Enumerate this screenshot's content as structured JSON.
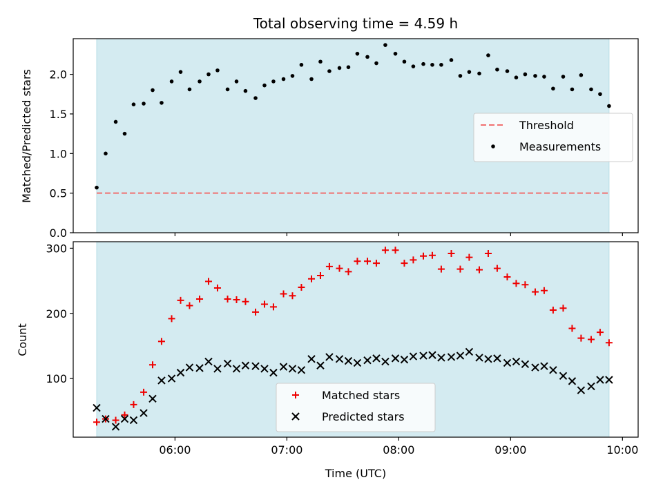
{
  "chart_data": {
    "title": "Total observing time = 4.59 h",
    "xlabel": "Time (UTC)",
    "x_ticks": [
      "06:00",
      "07:00",
      "08:00",
      "09:00",
      "10:00"
    ],
    "x_tick_values": [
      6.0,
      7.0,
      8.0,
      9.0,
      10.0
    ],
    "xlim": [
      5.09,
      10.14
    ],
    "x": [
      5.3,
      5.38,
      5.47,
      5.55,
      5.63,
      5.72,
      5.8,
      5.88,
      5.97,
      6.05,
      6.13,
      6.22,
      6.3,
      6.38,
      6.47,
      6.55,
      6.63,
      6.72,
      6.8,
      6.88,
      6.97,
      7.05,
      7.13,
      7.22,
      7.3,
      7.38,
      7.47,
      7.55,
      7.63,
      7.72,
      7.8,
      7.88,
      7.97,
      8.05,
      8.13,
      8.22,
      8.3,
      8.38,
      8.47,
      8.55,
      8.63,
      8.72,
      8.8,
      8.88,
      8.97,
      9.05,
      9.13,
      9.22,
      9.3,
      9.38,
      9.47,
      9.55,
      9.63,
      9.72,
      9.8,
      9.88
    ],
    "observing_window": [
      5.3,
      9.88
    ],
    "window_color": "#d4ebf1",
    "panels": [
      {
        "type": "scatter",
        "ylabel": "Matched/Predicted stars",
        "ylim": [
          0,
          2.45
        ],
        "y_ticks": [
          "0.0",
          "0.5",
          "1.0",
          "1.5",
          "2.0"
        ],
        "y_tick_values": [
          0.0,
          0.5,
          1.0,
          1.5,
          2.0
        ],
        "threshold": {
          "name": "Threshold",
          "value": 0.5,
          "color": "#f07070"
        },
        "series": [
          {
            "name": "Measurements",
            "marker": "dot",
            "color": "#000000",
            "values": [
              0.57,
              1.0,
              1.4,
              1.25,
              1.62,
              1.63,
              1.8,
              1.64,
              1.91,
              2.03,
              1.81,
              1.91,
              2.0,
              2.05,
              1.81,
              1.91,
              1.79,
              1.7,
              1.86,
              1.91,
              1.94,
              1.98,
              2.12,
              1.94,
              2.16,
              2.04,
              2.08,
              2.09,
              2.26,
              2.22,
              2.14,
              2.37,
              2.26,
              2.16,
              2.1,
              2.13,
              2.12,
              2.12,
              2.18,
              1.98,
              2.03,
              2.01,
              2.24,
              2.06,
              2.04,
              1.96,
              2.0,
              1.98,
              1.97,
              1.82,
              1.97,
              1.81,
              1.99,
              1.81,
              1.75,
              1.6
            ]
          }
        ],
        "legend": "center-right"
      },
      {
        "type": "scatter",
        "ylabel": "Count",
        "ylim": [
          10,
          310
        ],
        "y_ticks": [
          "100",
          "200",
          "300"
        ],
        "y_tick_values": [
          100,
          200,
          300
        ],
        "series": [
          {
            "name": "Matched stars",
            "marker": "plus",
            "color": "#ee0000",
            "values": [
              33,
              38,
              36,
              44,
              60,
              79,
              121,
              157,
              192,
              220,
              212,
              222,
              249,
              239,
              222,
              221,
              218,
              202,
              214,
              210,
              230,
              227,
              240,
              253,
              258,
              272,
              269,
              264,
              280,
              280,
              277,
              297,
              297,
              277,
              282,
              288,
              289,
              268,
              292,
              268,
              286,
              267,
              292,
              269,
              256,
              246,
              244,
              233,
              235,
              205,
              208,
              177,
              162,
              160,
              171,
              155
            ]
          },
          {
            "name": "Predicted stars",
            "marker": "x",
            "color": "#000000",
            "values": [
              55,
              38,
              26,
              38,
              36,
              47,
              69,
              97,
              100,
              109,
              117,
              116,
              126,
              115,
              123,
              115,
              120,
              119,
              115,
              109,
              118,
              115,
              113,
              130,
              120,
              133,
              130,
              127,
              124,
              128,
              131,
              126,
              131,
              129,
              134,
              135,
              136,
              132,
              133,
              135,
              141,
              132,
              130,
              131,
              124,
              126,
              122,
              117,
              119,
              113,
              104,
              96,
              82,
              88,
              98,
              98
            ]
          }
        ],
        "legend": "lower-center"
      }
    ]
  }
}
